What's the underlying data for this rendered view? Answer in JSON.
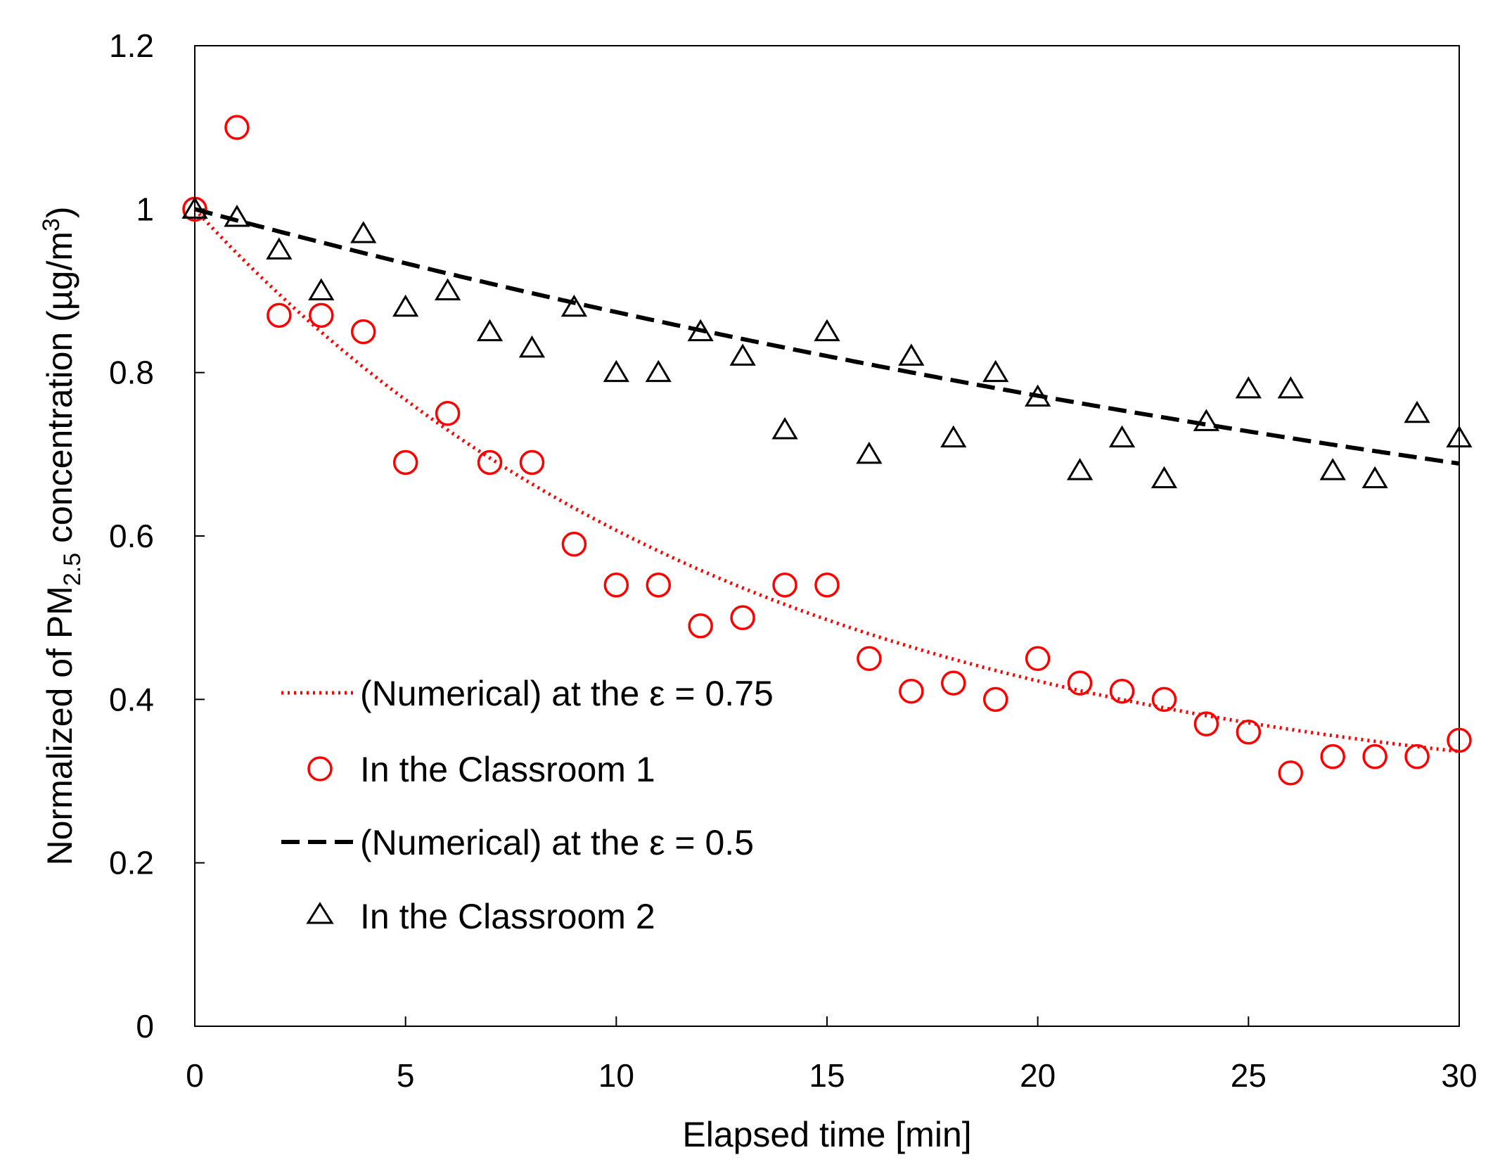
{
  "chart_data": {
    "type": "scatter",
    "title": "",
    "xlabel": "Elapsed time [min]",
    "ylabel": {
      "prefix": "Normalized of PM",
      "subscript": "2.5",
      "suffix": " concentration (µg/m",
      "superscript": "3",
      "close": ")"
    },
    "xlim": [
      0,
      30
    ],
    "ylim": [
      0,
      1.2
    ],
    "xticks": [
      0,
      5,
      10,
      15,
      20,
      25,
      30
    ],
    "yticks": [
      0,
      0.2,
      0.4,
      0.6,
      0.8,
      1,
      1.2
    ],
    "grid": false,
    "legend_position": "bottom-left",
    "series": [
      {
        "name": "(Numerical) at the ε = 0.75",
        "kind": "line",
        "style": "dotted",
        "color": "#ff0000",
        "model": {
          "form": "a + b*exp(-x/tau)",
          "a": 0.26,
          "b": 0.74,
          "tau": 13.2
        }
      },
      {
        "name": "In the Classroom 1",
        "kind": "markers",
        "marker": "circle",
        "color": "#ff0000",
        "x": [
          0,
          1,
          2,
          3,
          4,
          5,
          6,
          7,
          8,
          9,
          10,
          11,
          12,
          13,
          14,
          15,
          16,
          17,
          18,
          19,
          20,
          21,
          22,
          23,
          24,
          25,
          26,
          27,
          28,
          29,
          30
        ],
        "y": [
          1.0,
          1.1,
          0.87,
          0.87,
          0.85,
          0.69,
          0.75,
          0.69,
          0.69,
          0.59,
          0.54,
          0.54,
          0.49,
          0.5,
          0.54,
          0.54,
          0.45,
          0.41,
          0.42,
          0.4,
          0.45,
          0.42,
          0.41,
          0.4,
          0.37,
          0.36,
          0.31,
          0.33,
          0.33,
          0.33,
          0.35
        ]
      },
      {
        "name": "(Numerical) at the ε = 0.5",
        "kind": "line",
        "style": "dashed",
        "color": "#000000",
        "model": {
          "form": "a + b*exp(-x/tau)",
          "a": 0.33,
          "b": 0.67,
          "tau": 48
        }
      },
      {
        "name": "In the Classroom 2",
        "kind": "markers",
        "marker": "triangle",
        "color": "#000000",
        "x": [
          0,
          1,
          2,
          3,
          4,
          5,
          6,
          7,
          8,
          9,
          10,
          11,
          12,
          13,
          14,
          15,
          16,
          17,
          18,
          19,
          20,
          21,
          22,
          23,
          24,
          25,
          26,
          27,
          28,
          29,
          30
        ],
        "y": [
          1.0,
          0.99,
          0.95,
          0.9,
          0.97,
          0.88,
          0.9,
          0.85,
          0.83,
          0.88,
          0.8,
          0.8,
          0.85,
          0.82,
          0.73,
          0.85,
          0.7,
          0.82,
          0.72,
          0.8,
          0.77,
          0.68,
          0.72,
          0.67,
          0.74,
          0.78,
          0.78,
          0.68,
          0.67,
          0.75,
          0.72
        ]
      }
    ]
  }
}
